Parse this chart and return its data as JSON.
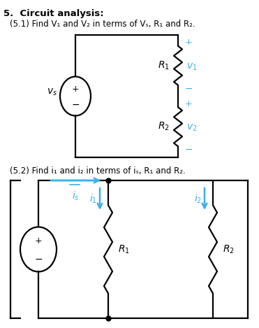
{
  "title_text": "5.  Circuit analysis:",
  "sub1_text": "(5.1) Find V₁ and V₂ in terms of Vₛ, R₁ and R₂.",
  "sub2_text": "(5.2) Find i₁ and i₂ in terms of iₛ, R₁ and R₂.",
  "black": "#000000",
  "cyan": "#3daee9",
  "bg": "#ffffff",
  "lw": 1.6
}
